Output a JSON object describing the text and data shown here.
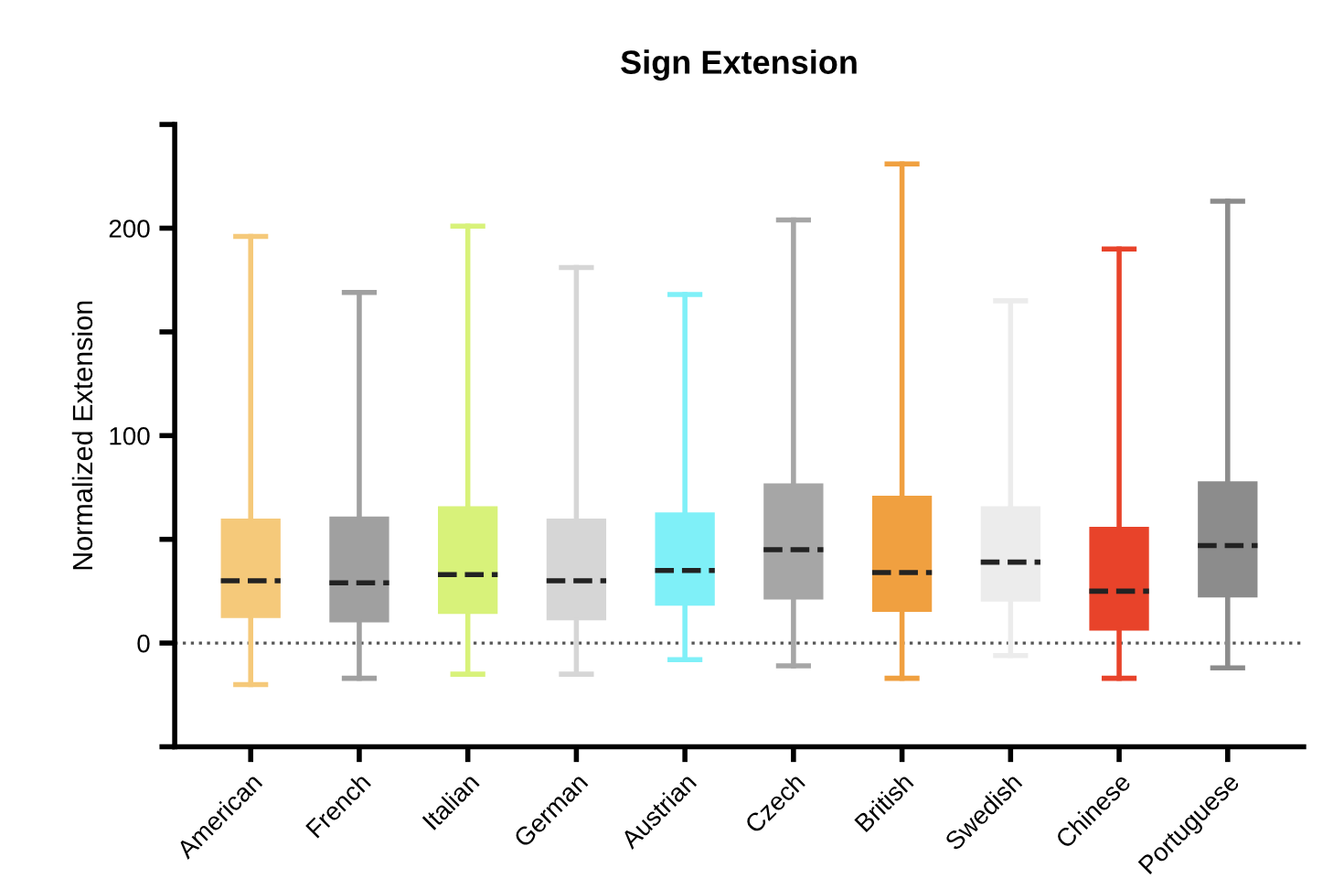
{
  "chart_data": {
    "type": "box",
    "title": "Sign Extension",
    "ylabel": "Normalized Extension",
    "categories": [
      "American",
      "French",
      "Italian",
      "German",
      "Austrian",
      "Czech",
      "British",
      "Swedish",
      "Chinese",
      "Portuguese"
    ],
    "colors": [
      "#f5c97a",
      "#a0a0a0",
      "#d8f27a",
      "#d6d6d6",
      "#7ff0f8",
      "#a6a6a6",
      "#f0a040",
      "#ececec",
      "#e8432a",
      "#8c8c8c"
    ],
    "boxes": [
      {
        "low": -20,
        "q1": 12,
        "median": 30,
        "q3": 60,
        "high": 196
      },
      {
        "low": -17,
        "q1": 10,
        "median": 29,
        "q3": 61,
        "high": 169
      },
      {
        "low": -15,
        "q1": 14,
        "median": 33,
        "q3": 66,
        "high": 201
      },
      {
        "low": -15,
        "q1": 11,
        "median": 30,
        "q3": 60,
        "high": 181
      },
      {
        "low": -8,
        "q1": 18,
        "median": 35,
        "q3": 63,
        "high": 168
      },
      {
        "low": -11,
        "q1": 21,
        "median": 45,
        "q3": 77,
        "high": 204
      },
      {
        "low": -17,
        "q1": 15,
        "median": 34,
        "q3": 71,
        "high": 231
      },
      {
        "low": -6,
        "q1": 20,
        "median": 39,
        "q3": 66,
        "high": 165
      },
      {
        "low": -17,
        "q1": 6,
        "median": 25,
        "q3": 56,
        "high": 190
      },
      {
        "low": -12,
        "q1": 22,
        "median": 47,
        "q3": 78,
        "high": 213
      }
    ],
    "ylim": [
      -50,
      250
    ],
    "yticks": [
      {
        "value": -50,
        "label": null
      },
      0,
      {
        "value": 50,
        "label": null
      },
      100,
      {
        "value": 150,
        "label": null
      },
      200,
      {
        "value": 250,
        "label": null
      }
    ],
    "ref_lines": [
      {
        "axis": "y",
        "value": 0,
        "label": null,
        "color": "#555555",
        "line_style": "dotted"
      }
    ],
    "grid": false,
    "legend": false
  }
}
